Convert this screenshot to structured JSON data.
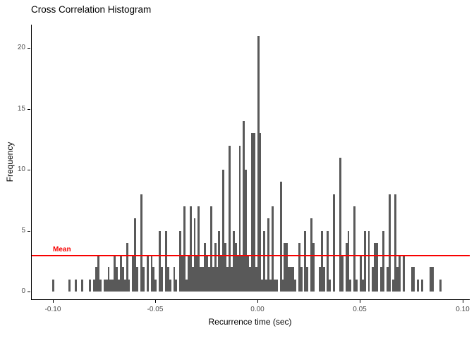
{
  "title": "Cross Correlation Histogram",
  "axes": {
    "x_label": "Recurrence time (sec)",
    "y_label": "Frequency",
    "x_tick_labels": [
      "-0.10",
      "-0.05",
      "0.00",
      "0.05",
      "0.10"
    ],
    "y_tick_labels": [
      "0",
      "5",
      "10",
      "15",
      "20"
    ]
  },
  "annotation": {
    "mean_label": "Mean"
  },
  "colors": {
    "bar_fill": "#595959",
    "mean_line": "#f80000",
    "axis_line": "#000000",
    "tick_text": "#4d4d4d",
    "title_text": "#000000"
  },
  "chart_data": {
    "type": "bar",
    "subtype": "histogram",
    "title": "Cross Correlation Histogram",
    "xlabel": "Recurrence time (sec)",
    "ylabel": "Frequency",
    "legend": "none",
    "grid": false,
    "bin_width": 0.001,
    "x_start": -0.1,
    "x_end": 0.09,
    "x_tick_values": [
      -0.1,
      -0.05,
      0.0,
      0.05,
      0.1
    ],
    "y_tick_values": [
      0,
      5,
      10,
      15,
      20
    ],
    "xlim": [
      -0.1105,
      0.1032
    ],
    "ylim": [
      0,
      21.9
    ],
    "mean_line_y": 3.02,
    "max_frequency": 21,
    "values": [
      1,
      0,
      0,
      0,
      0,
      0,
      0,
      0,
      1,
      0,
      0,
      1,
      0,
      0,
      1,
      0,
      0,
      0,
      1,
      0,
      1,
      2,
      3,
      1,
      0,
      1,
      1,
      2,
      1,
      1,
      3,
      2,
      1,
      3,
      2,
      1,
      4,
      1,
      0,
      3,
      6,
      2,
      0,
      8,
      2,
      0,
      3,
      0,
      3,
      2,
      1,
      0,
      5,
      2,
      0,
      5,
      2,
      1,
      0,
      2,
      1,
      0,
      5,
      3,
      7,
      1,
      3,
      7,
      2,
      6,
      3,
      7,
      2,
      2,
      4,
      3,
      2,
      7,
      2,
      4,
      2,
      5,
      3,
      10,
      4,
      2,
      12,
      2,
      5,
      4,
      3,
      12,
      3,
      14,
      10,
      3,
      2,
      13,
      13,
      2,
      21,
      13,
      1,
      5,
      1,
      6,
      1,
      7,
      1,
      1,
      0,
      9,
      1,
      4,
      4,
      2,
      2,
      2,
      1,
      0,
      4,
      2,
      0,
      5,
      2,
      0,
      6,
      4,
      0,
      0,
      2,
      5,
      2,
      0,
      5,
      1,
      0,
      8,
      0,
      0,
      11,
      3,
      0,
      4,
      5,
      1,
      0,
      7,
      1,
      0,
      3,
      1,
      5,
      0,
      5,
      0,
      2,
      4,
      4,
      0,
      2,
      5,
      0,
      2,
      8,
      0,
      1,
      8,
      2,
      3,
      0,
      3,
      0,
      0,
      0,
      2,
      2,
      0,
      1,
      0,
      1,
      0,
      0,
      0,
      2,
      2,
      0,
      0,
      0,
      1,
      0
    ]
  }
}
